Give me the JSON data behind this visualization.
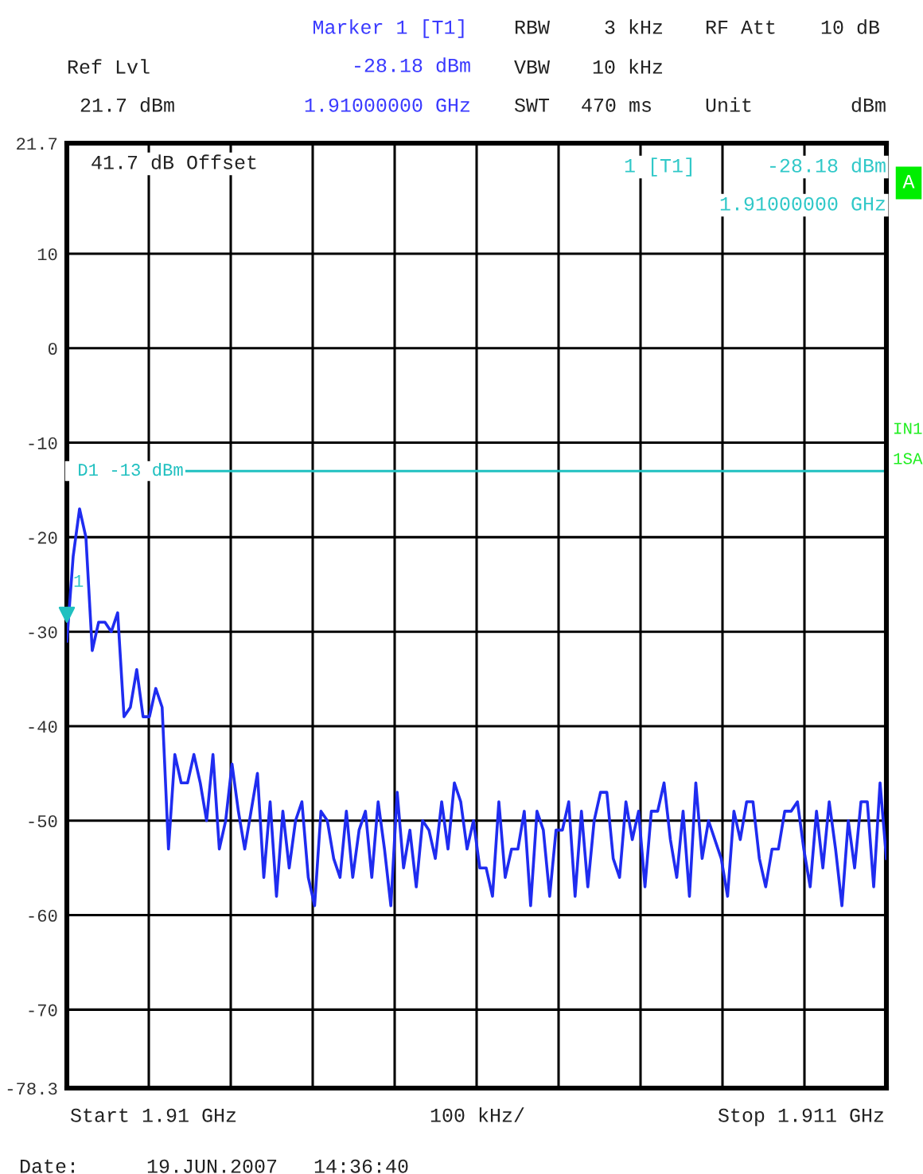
{
  "chart_data": {
    "type": "line",
    "categories": [
      null,
      null,
      null,
      null,
      null,
      null,
      null,
      null,
      null,
      null,
      null,
      null,
      null,
      null,
      null,
      null,
      null,
      null,
      null,
      null,
      null,
      null,
      null,
      null,
      null,
      null,
      null,
      null,
      null,
      null,
      null,
      null,
      null,
      null,
      null,
      null,
      null,
      null,
      null,
      null,
      null,
      null,
      null,
      null,
      null,
      null,
      null,
      null,
      null,
      null,
      null,
      null,
      null,
      null,
      null,
      null,
      null,
      null,
      null,
      null,
      null,
      null,
      null,
      null,
      null,
      null,
      null,
      null,
      null,
      null,
      null,
      null,
      null,
      null,
      null,
      null,
      null,
      null,
      null,
      null,
      null,
      null,
      null,
      null,
      null,
      null,
      null,
      null,
      null,
      null,
      null,
      null,
      null,
      null,
      null,
      null,
      null,
      null,
      null,
      null,
      null,
      null,
      null,
      null,
      null,
      null,
      null,
      null,
      null,
      null,
      null,
      null,
      null,
      null,
      null,
      null,
      null,
      null,
      null,
      null,
      null,
      null,
      null,
      null,
      null,
      null,
      null,
      null,
      null,
      null
    ],
    "series": [
      {
        "color": "#1f2cf0",
        "values": [
          -31,
          -22,
          -17,
          -20,
          -32,
          -29,
          -29,
          -30,
          -28,
          -39,
          -38,
          -34,
          -39,
          -39,
          -36,
          -38,
          -53,
          -43,
          -46,
          -46,
          -43,
          -46,
          -50,
          -43,
          -53,
          -50,
          -44,
          -49,
          -53,
          -49,
          -45,
          -56,
          -48,
          -58,
          -49,
          -55,
          -50,
          -48,
          -56,
          -59,
          -49,
          -50,
          -54,
          -56,
          -49,
          -56,
          -51,
          -49,
          -56,
          -48,
          -53,
          -59,
          -47,
          -55,
          -51,
          -57,
          -50,
          -51,
          -54,
          -48,
          -53,
          -46,
          -48,
          -53,
          -50,
          -55,
          -55,
          -58,
          -48,
          -56,
          -53,
          -53,
          -49,
          -59,
          -49,
          -51,
          -58,
          -51,
          -51,
          -48,
          -58,
          -49,
          -57,
          -50,
          -47,
          -47,
          -54,
          -56,
          -48,
          -52,
          -49,
          -57,
          -49,
          -49,
          -46,
          -52,
          -56,
          -49,
          -58,
          -46,
          -54,
          -50,
          -52,
          -54,
          -58,
          -49,
          -52,
          -48,
          -48,
          -54,
          -57,
          -53,
          -53,
          -49,
          -49,
          -48,
          -53,
          -57,
          -49,
          -55,
          -48,
          -53,
          -59,
          -50,
          -55,
          -48,
          -48,
          -57,
          -46,
          -54
        ]
      },
      {
        "type": "scatter",
        "color": "#20c0c0",
        "marker": "triangle",
        "values": [
          -28.2,
          null,
          null,
          null,
          null,
          null,
          null,
          null,
          null,
          null,
          null,
          null,
          null,
          null,
          null,
          null,
          null,
          null,
          null,
          null,
          null,
          null,
          null,
          null,
          null,
          null,
          null,
          null,
          null,
          null,
          null,
          null,
          null,
          null,
          null,
          null,
          null,
          null,
          null,
          null,
          null,
          null,
          null,
          null,
          null,
          null,
          null,
          null,
          null,
          null,
          null,
          null,
          null,
          null,
          null,
          null,
          null,
          null,
          null,
          null,
          null,
          null,
          null,
          null,
          null,
          null,
          null,
          null,
          null,
          null,
          null,
          null,
          null,
          null,
          null,
          null,
          null,
          null,
          null,
          null,
          null,
          null,
          null,
          null,
          null,
          null,
          null,
          null,
          null,
          null,
          null,
          null,
          null,
          null,
          null,
          null,
          null,
          null,
          null,
          null,
          null,
          null,
          null,
          null,
          null,
          null,
          null,
          null,
          null,
          null,
          null,
          null,
          null,
          null,
          null,
          null,
          null,
          null,
          null,
          null,
          null,
          null,
          null,
          null,
          null,
          null,
          null,
          null,
          null,
          null
        ]
      }
    ],
    "ylim": [
      -78.3,
      21.7
    ],
    "yticks": [
      21.7,
      10,
      0,
      -10,
      -20,
      -30,
      -40,
      -50,
      -60,
      -70,
      -78.3
    ],
    "grid": true,
    "marker": "none",
    "line_style": "solid",
    "ref_lines": [
      {
        "axis": "y",
        "value": -13,
        "label": "D1 -13 dBm",
        "color": "#20c0c0"
      }
    ],
    "annotations": [
      "Marker 1 [T1]",
      "-28.18 dBm",
      "1.91000000 GHz",
      "Ref Lvl",
      "21.7 dBm",
      "RBW",
      "3 kHz",
      "VBW",
      "10 kHz",
      "SWT",
      "470 ms",
      "RF Att",
      "10 dB",
      "Unit",
      "dBm",
      "41.7 dB Offset",
      "1 [T1]",
      "-28.18 dBm",
      "1.91000000 GHz",
      "A",
      "IN1",
      "1SA",
      "Date:",
      "19.JUN.2007",
      "14:36:40",
      "Start 1.91 GHz",
      "100 kHz/",
      "Stop 1.911 GHz",
      "1"
    ]
  }
}
